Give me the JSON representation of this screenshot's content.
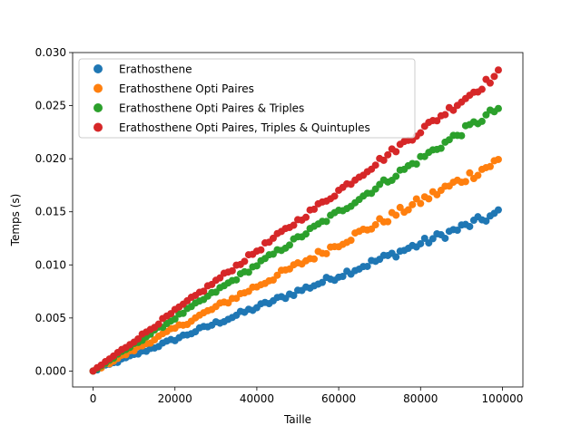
{
  "chart_data": {
    "type": "scatter",
    "xlabel": "Taille",
    "ylabel": "Temps (s)",
    "xlim": [
      -5000,
      105000
    ],
    "ylim": [
      -0.0015,
      0.03
    ],
    "xticks": [
      0,
      20000,
      40000,
      60000,
      80000,
      100000
    ],
    "xtick_labels": [
      "0",
      "20000",
      "40000",
      "60000",
      "80000",
      "100000"
    ],
    "yticks": [
      0.0,
      0.005,
      0.01,
      0.015,
      0.02,
      0.025,
      0.03
    ],
    "ytick_labels": [
      "0.000",
      "0.005",
      "0.010",
      "0.015",
      "0.020",
      "0.025",
      "0.030"
    ],
    "grid": false,
    "legend_position": "top-left",
    "x_range": [
      0,
      99000
    ],
    "x_step": 1000,
    "series": [
      {
        "name": "Erathosthene",
        "color": "#1f77b4",
        "slope": 1.5e-07,
        "noise": 0.00035
      },
      {
        "name": "Erathosthene Opti Paires",
        "color": "#ff7f0e",
        "slope": 2e-07,
        "noise": 0.0004
      },
      {
        "name": "Erathosthene Opti Paires & Triples",
        "color": "#2ca02c",
        "slope": 2.5e-07,
        "noise": 0.0003
      },
      {
        "name": "Erathosthene Opti Paires, Triples & Quintuples",
        "color": "#d62728",
        "slope": 2.83e-07,
        "noise": 0.0003
      }
    ]
  }
}
